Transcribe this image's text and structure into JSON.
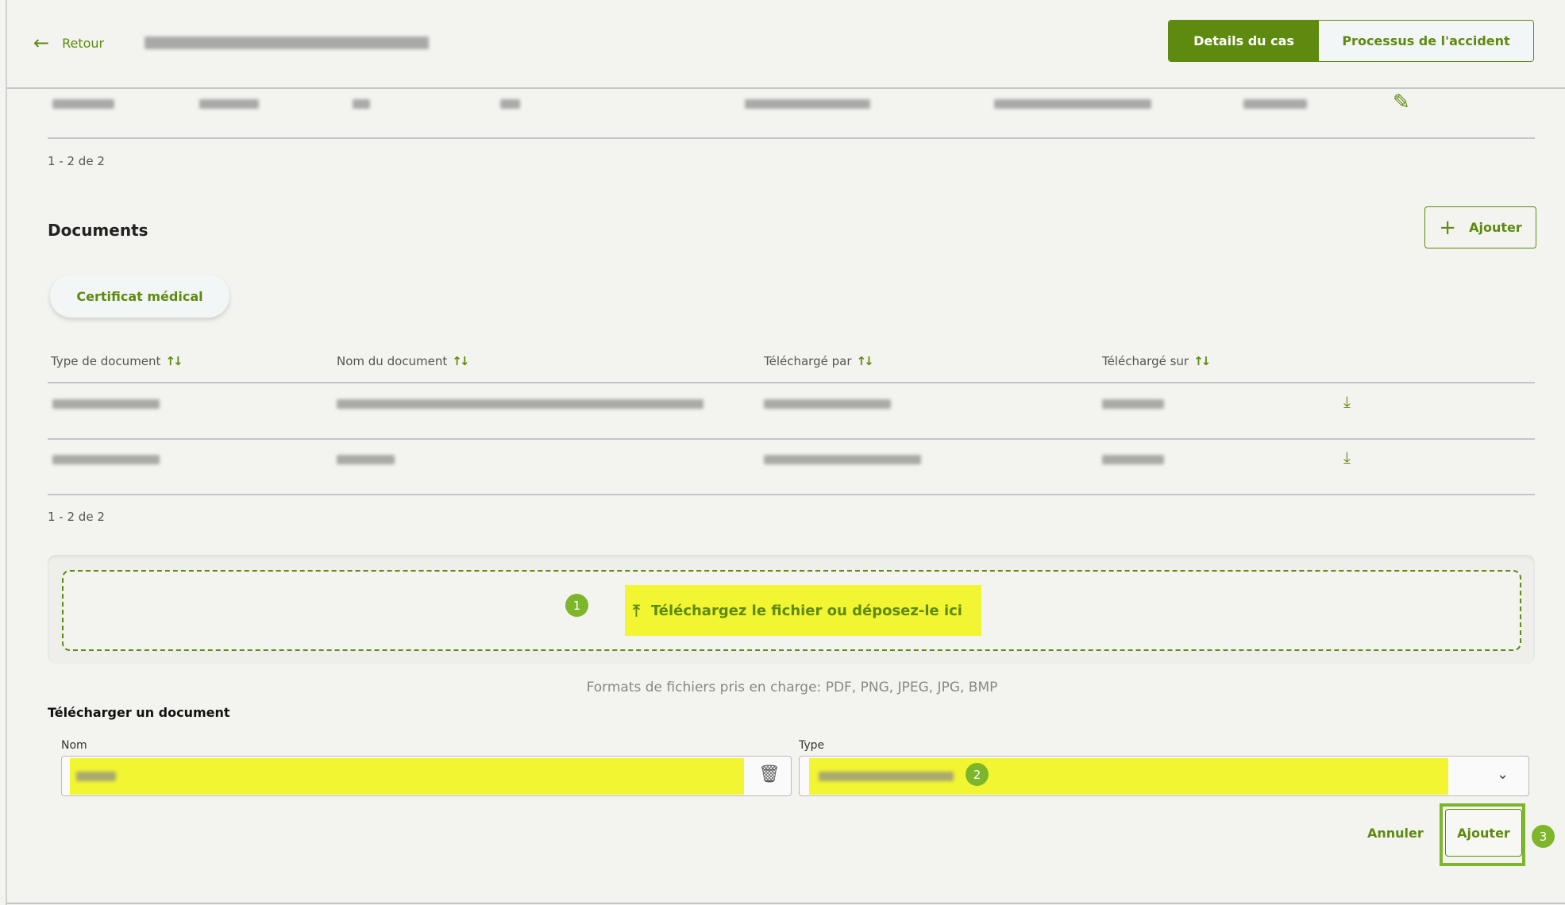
{
  "header": {
    "back_label": "Retour",
    "tabs": [
      {
        "label": "Details du cas",
        "active": true
      },
      {
        "label": "Processus de l'accident",
        "active": false
      }
    ]
  },
  "top_table": {
    "pagination": "1 - 2 de 2"
  },
  "documents": {
    "title": "Documents",
    "add_label": "Ajouter",
    "filter_chip": "Certificat médical",
    "columns": [
      "Type de document",
      "Nom du document",
      "Téléchargé par",
      "Téléchargé sur"
    ],
    "pagination": "1 - 2 de 2"
  },
  "upload": {
    "dropzone_label": "Téléchargez le fichier ou déposez-le ici",
    "formats_text": "Formats de fichiers pris en charge: PDF, PNG, JPEG, JPG, BMP",
    "section_title": "Télécharger un document",
    "name_label": "Nom",
    "type_label": "Type",
    "cancel_label": "Annuler",
    "submit_label": "Ajouter"
  },
  "annotations": [
    "1",
    "2",
    "3"
  ],
  "colors": {
    "accent": "#5e8a0f",
    "highlight": "#f2f531",
    "badge": "#7db52b",
    "background": "#f3f3ef"
  }
}
